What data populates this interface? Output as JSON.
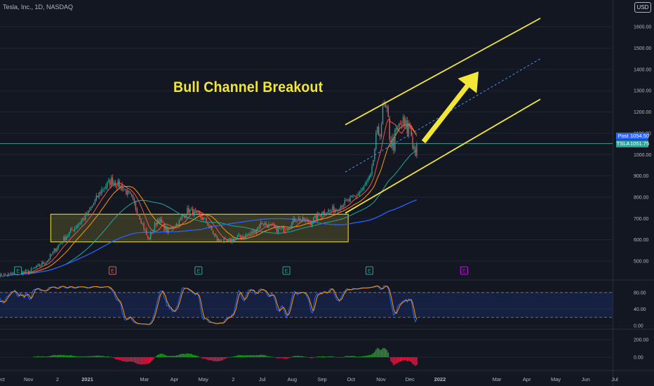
{
  "symbol_title": "Tesla, Inc., 1D, NASDAQ",
  "currency": "USD",
  "annotation": "Bull Channel Breakout",
  "price_labels": [
    {
      "name": "Post",
      "value": "1054.50",
      "color": "#2962ff"
    },
    {
      "name": "TSLA",
      "value": "1051.75",
      "color": "#26a69a"
    }
  ],
  "earnings_marker": "E",
  "colors": {
    "background": "#131722",
    "bull_candle": "#26a69a",
    "bear_candle": "#ef5350",
    "channel": "#f2e637",
    "range_box_fill": "#f2e637",
    "ma_short": "#ef5350",
    "ma_medium": "#ff9800",
    "ma_long": "#26a69a",
    "ma_longest": "#2962ff",
    "stoch_k": "#2962ff",
    "stoch_d": "#ff9800",
    "macd_positive": "#22ab25",
    "macd_negative": "#ff1744"
  },
  "chart_data": [
    {
      "type": "candlestick",
      "title": "Tesla, Inc., 1D, NASDAQ",
      "x_ticks": [
        "Oct",
        "Nov",
        "2",
        "2021",
        "Mar",
        "Apr",
        "May",
        "2",
        "Jul",
        "Aug",
        "Sep",
        "Oct",
        "Nov",
        "Dec",
        "2022",
        "Mar",
        "Apr",
        "May",
        "Jun",
        "Jul"
      ],
      "y_ticks": [
        500,
        600,
        700,
        800,
        900,
        1000,
        1100,
        1200,
        1300,
        1400,
        1500,
        1600
      ],
      "y_tick_labels": [
        "500.00",
        "600.00",
        "700.00",
        "800.00",
        "900.00",
        "1000.00",
        "1100.00",
        "1200.00",
        "1300.00",
        "1400.00",
        "1500.00",
        "1600.00"
      ],
      "ylim": [
        450,
        1680
      ],
      "last_price": 1051.75,
      "post_market_price": 1054.5,
      "close_path": [
        [
          "2020-10-01",
          430
        ],
        [
          "2020-11-01",
          450
        ],
        [
          "2020-11-20",
          500
        ],
        [
          "2020-12-01",
          570
        ],
        [
          "2020-12-15",
          640
        ],
        [
          "2021-01-01",
          720
        ],
        [
          "2021-01-15",
          830
        ],
        [
          "2021-01-26",
          880
        ],
        [
          "2021-02-05",
          850
        ],
        [
          "2021-02-15",
          800
        ],
        [
          "2021-02-25",
          700
        ],
        [
          "2021-03-05",
          600
        ],
        [
          "2021-03-15",
          700
        ],
        [
          "2021-03-25",
          640
        ],
        [
          "2021-04-05",
          680
        ],
        [
          "2021-04-15",
          740
        ],
        [
          "2021-04-25",
          720
        ],
        [
          "2021-05-05",
          680
        ],
        [
          "2021-05-15",
          600
        ],
        [
          "2021-05-25",
          590
        ],
        [
          "2021-06-05",
          610
        ],
        [
          "2021-06-20",
          630
        ],
        [
          "2021-07-01",
          680
        ],
        [
          "2021-07-15",
          650
        ],
        [
          "2021-07-25",
          650
        ],
        [
          "2021-08-05",
          700
        ],
        [
          "2021-08-20",
          680
        ],
        [
          "2021-09-01",
          730
        ],
        [
          "2021-09-15",
          745
        ],
        [
          "2021-09-25",
          775
        ],
        [
          "2021-10-05",
          800
        ],
        [
          "2021-10-15",
          850
        ],
        [
          "2021-10-22",
          900
        ],
        [
          "2021-10-25",
          1020
        ],
        [
          "2021-11-01",
          1150
        ],
        [
          "2021-11-04",
          1215
        ],
        [
          "2021-11-08",
          1160
        ],
        [
          "2021-11-12",
          1040
        ],
        [
          "2021-11-16",
          1080
        ],
        [
          "2021-11-22",
          1150
        ],
        [
          "2021-11-26",
          1120
        ],
        [
          "2021-12-01",
          1130
        ],
        [
          "2021-12-06",
          1010
        ],
        [
          "2021-12-08",
          1052
        ]
      ],
      "channel_upper": [
        [
          "2021-09-25",
          1140
        ],
        [
          "2022-04-15",
          1640
        ]
      ],
      "channel_lower": [
        [
          "2021-09-25",
          725
        ],
        [
          "2022-04-15",
          1260
        ]
      ],
      "channel_mid": [
        [
          "2021-09-25",
          918
        ],
        [
          "2022-04-15",
          1450
        ]
      ],
      "consolidation_range": {
        "from": "2020-11-24",
        "to": "2021-09-28",
        "low": 590,
        "high": 720
      },
      "arrow": {
        "from": [
          "2021-12-15",
          1060
        ],
        "to": [
          "2022-02-10",
          1390
        ]
      },
      "earnings_dates": [
        {
          "date": "2020-10-21",
          "color": "#26a69a"
        },
        {
          "date": "2021-01-27",
          "color": "#ef5350"
        },
        {
          "date": "2021-04-26",
          "color": "#26a69a"
        },
        {
          "date": "2021-07-26",
          "color": "#26a69a"
        },
        {
          "date": "2021-10-20",
          "color": "#26a69a"
        },
        {
          "date": "2022-01-26",
          "color": "#d500f9"
        }
      ]
    },
    {
      "type": "line",
      "title": "",
      "y_ticks": [
        0,
        40,
        80
      ],
      "y_tick_labels": [
        "0.00",
        "40.00",
        "80.00"
      ],
      "ylim": [
        -5,
        100
      ],
      "levels": [
        20,
        80
      ]
    },
    {
      "type": "bar",
      "title": "",
      "y_ticks": [
        0,
        200
      ],
      "y_tick_labels": [
        "0.00",
        "200.00"
      ],
      "ylim": [
        -110,
        255
      ]
    }
  ]
}
